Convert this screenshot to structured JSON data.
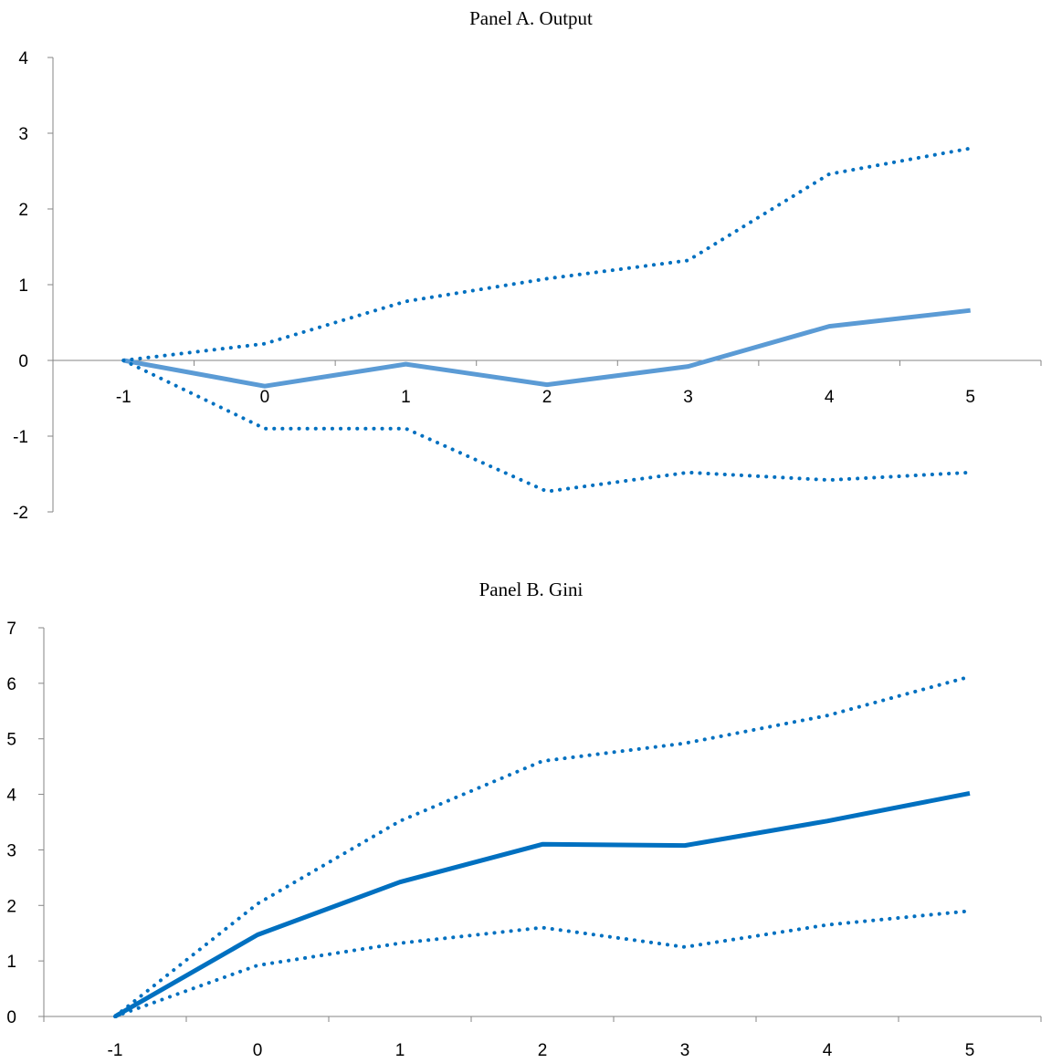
{
  "chart_data": [
    {
      "type": "line",
      "title": "Panel A. Output",
      "x": [
        -1,
        0,
        1,
        2,
        3,
        4,
        5
      ],
      "ylim": [
        -2,
        4
      ],
      "yticks": [
        -2,
        -1,
        0,
        1,
        2,
        3,
        4
      ],
      "grid": false,
      "series": [
        {
          "style": "solid",
          "color": "#5b9bd5",
          "values": [
            0,
            -0.34,
            -0.05,
            -0.32,
            -0.08,
            0.45,
            0.66
          ]
        },
        {
          "style": "dotted",
          "color": "#0070c0",
          "values": [
            0,
            0.22,
            0.78,
            1.08,
            1.32,
            2.46,
            2.8
          ]
        },
        {
          "style": "dotted",
          "color": "#0070c0",
          "values": [
            0,
            -0.9,
            -0.9,
            -1.73,
            -1.48,
            -1.58,
            -1.48
          ]
        }
      ]
    },
    {
      "type": "line",
      "title": "Panel B. Gini",
      "x": [
        -1,
        0,
        1,
        2,
        3,
        4,
        5
      ],
      "ylim": [
        0,
        7
      ],
      "yticks": [
        0,
        1,
        2,
        3,
        4,
        5,
        6,
        7
      ],
      "grid": false,
      "series": [
        {
          "style": "solid",
          "color": "#0070c0",
          "values": [
            0,
            1.47,
            2.42,
            3.1,
            3.08,
            3.52,
            4.02
          ]
        },
        {
          "style": "dotted",
          "color": "#0070c0",
          "values": [
            0,
            2.03,
            3.52,
            4.6,
            4.92,
            5.42,
            6.12
          ]
        },
        {
          "style": "dotted",
          "color": "#0070c0",
          "values": [
            0,
            0.92,
            1.32,
            1.6,
            1.25,
            1.65,
            1.9
          ]
        }
      ]
    }
  ]
}
